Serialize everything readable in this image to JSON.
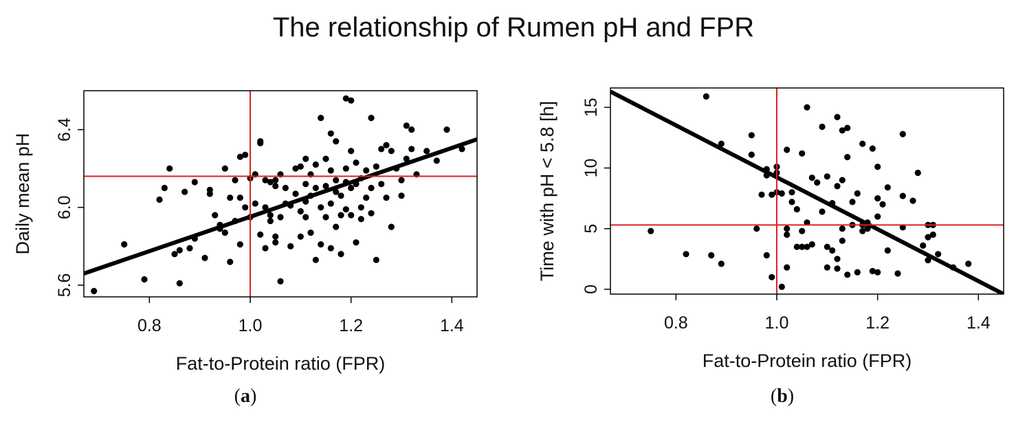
{
  "title": "The relationship of Rumen pH and FPR",
  "chart_data": [
    {
      "type": "scatter",
      "panel": "(a)",
      "panel_letter": "a",
      "xlabel": "Fat-to-Protein ratio (FPR)",
      "ylabel": "Daily mean pH",
      "xlim": [
        0.67,
        1.45
      ],
      "ylim": [
        5.54,
        6.6
      ],
      "xticks": [
        0.8,
        1.0,
        1.2,
        1.4
      ],
      "xtick_labels": [
        "0.8",
        "1.0",
        "1.2",
        "1.4"
      ],
      "yticks": [
        5.6,
        6.0,
        6.4
      ],
      "ytick_labels": [
        "5.6",
        "6.0",
        "6.4"
      ],
      "grid": false,
      "reference_lines": {
        "x": 1.0,
        "y": 6.16
      },
      "regression_line": [
        [
          0.67,
          5.66
        ],
        [
          1.45,
          6.35
        ]
      ],
      "points": [
        [
          0.69,
          5.57
        ],
        [
          0.75,
          5.81
        ],
        [
          0.79,
          5.63
        ],
        [
          0.82,
          6.04
        ],
        [
          0.83,
          6.1
        ],
        [
          0.84,
          6.2
        ],
        [
          0.85,
          5.76
        ],
        [
          0.86,
          5.61
        ],
        [
          0.86,
          5.78
        ],
        [
          0.87,
          6.08
        ],
        [
          0.88,
          5.79
        ],
        [
          0.89,
          5.84
        ],
        [
          0.89,
          6.13
        ],
        [
          0.91,
          5.74
        ],
        [
          0.92,
          6.09
        ],
        [
          0.92,
          6.07
        ],
        [
          0.93,
          5.96
        ],
        [
          0.94,
          5.91
        ],
        [
          0.94,
          5.89
        ],
        [
          0.95,
          6.2
        ],
        [
          0.95,
          5.87
        ],
        [
          0.96,
          5.72
        ],
        [
          0.96,
          6.05
        ],
        [
          0.97,
          6.14
        ],
        [
          0.97,
          5.93
        ],
        [
          0.98,
          6.26
        ],
        [
          0.98,
          6.05
        ],
        [
          0.98,
          5.81
        ],
        [
          0.99,
          6.27
        ],
        [
          0.99,
          6.0
        ],
        [
          1.0,
          6.15
        ],
        [
          1.0,
          5.95
        ],
        [
          1.01,
          6.17
        ],
        [
          1.01,
          6.02
        ],
        [
          1.02,
          6.33
        ],
        [
          1.02,
          5.86
        ],
        [
          1.02,
          6.34
        ],
        [
          1.03,
          6.14
        ],
        [
          1.03,
          6.0
        ],
        [
          1.03,
          5.79
        ],
        [
          1.04,
          6.13
        ],
        [
          1.04,
          5.96
        ],
        [
          1.04,
          5.93
        ],
        [
          1.05,
          6.14
        ],
        [
          1.05,
          6.11
        ],
        [
          1.05,
          5.85
        ],
        [
          1.05,
          5.82
        ],
        [
          1.06,
          5.62
        ],
        [
          1.06,
          6.17
        ],
        [
          1.06,
          5.95
        ],
        [
          1.07,
          6.1
        ],
        [
          1.07,
          6.02
        ],
        [
          1.08,
          6.01
        ],
        [
          1.08,
          5.8
        ],
        [
          1.09,
          6.2
        ],
        [
          1.09,
          6.07
        ],
        [
          1.1,
          6.21
        ],
        [
          1.1,
          5.98
        ],
        [
          1.1,
          5.85
        ],
        [
          1.11,
          6.25
        ],
        [
          1.11,
          6.12
        ],
        [
          1.11,
          6.03
        ],
        [
          1.11,
          5.95
        ],
        [
          1.12,
          6.17
        ],
        [
          1.12,
          6.06
        ],
        [
          1.12,
          5.87
        ],
        [
          1.13,
          6.22
        ],
        [
          1.13,
          6.1
        ],
        [
          1.13,
          5.73
        ],
        [
          1.14,
          6.46
        ],
        [
          1.14,
          6.0
        ],
        [
          1.14,
          5.81
        ],
        [
          1.15,
          6.25
        ],
        [
          1.15,
          6.11
        ],
        [
          1.15,
          5.95
        ],
        [
          1.16,
          6.38
        ],
        [
          1.16,
          6.19
        ],
        [
          1.16,
          6.02
        ],
        [
          1.16,
          5.79
        ],
        [
          1.17,
          6.34
        ],
        [
          1.17,
          6.14
        ],
        [
          1.17,
          6.08
        ],
        [
          1.17,
          5.9
        ],
        [
          1.18,
          6.06
        ],
        [
          1.18,
          5.96
        ],
        [
          1.18,
          5.76
        ],
        [
          1.19,
          6.56
        ],
        [
          1.19,
          6.2
        ],
        [
          1.19,
          6.13
        ],
        [
          1.19,
          5.99
        ],
        [
          1.2,
          6.55
        ],
        [
          1.2,
          6.29
        ],
        [
          1.2,
          6.1
        ],
        [
          1.2,
          5.96
        ],
        [
          1.21,
          6.23
        ],
        [
          1.21,
          6.12
        ],
        [
          1.21,
          5.82
        ],
        [
          1.22,
          6.15
        ],
        [
          1.22,
          6.0
        ],
        [
          1.22,
          5.94
        ],
        [
          1.23,
          6.19
        ],
        [
          1.23,
          6.05
        ],
        [
          1.24,
          6.46
        ],
        [
          1.24,
          6.1
        ],
        [
          1.24,
          5.97
        ],
        [
          1.25,
          6.21
        ],
        [
          1.25,
          5.73
        ],
        [
          1.26,
          6.3
        ],
        [
          1.26,
          6.12
        ],
        [
          1.27,
          6.32
        ],
        [
          1.27,
          6.05
        ],
        [
          1.28,
          6.29
        ],
        [
          1.28,
          5.9
        ],
        [
          1.29,
          6.2
        ],
        [
          1.3,
          6.14
        ],
        [
          1.3,
          6.06
        ],
        [
          1.31,
          6.42
        ],
        [
          1.31,
          6.25
        ],
        [
          1.32,
          6.4
        ],
        [
          1.32,
          6.3
        ],
        [
          1.33,
          6.17
        ],
        [
          1.35,
          6.29
        ],
        [
          1.37,
          6.24
        ],
        [
          1.39,
          6.4
        ],
        [
          1.42,
          6.3
        ]
      ]
    },
    {
      "type": "scatter",
      "panel": "(b)",
      "panel_letter": "b",
      "xlabel": "Fat-to-Protein ratio (FPR)",
      "ylabel": "Time with pH < 5.8 [h]",
      "xlim": [
        0.67,
        1.45
      ],
      "ylim": [
        -0.4,
        16.6
      ],
      "xticks": [
        0.8,
        1.0,
        1.2,
        1.4
      ],
      "xtick_labels": [
        "0.8",
        "1.0",
        "1.2",
        "1.4"
      ],
      "yticks": [
        0,
        5,
        10,
        15
      ],
      "ytick_labels": [
        "0",
        "5",
        "10",
        "15"
      ],
      "grid": false,
      "reference_lines": {
        "x": 1.0,
        "y": 5.3
      },
      "regression_line": [
        [
          0.67,
          16.3
        ],
        [
          1.45,
          -0.4
        ]
      ],
      "points": [
        [
          0.75,
          4.8
        ],
        [
          0.82,
          2.9
        ],
        [
          0.86,
          15.9
        ],
        [
          0.87,
          2.8
        ],
        [
          0.89,
          2.1
        ],
        [
          0.89,
          12.0
        ],
        [
          0.95,
          12.7
        ],
        [
          0.95,
          11.1
        ],
        [
          0.96,
          5.0
        ],
        [
          0.97,
          7.8
        ],
        [
          0.98,
          9.4
        ],
        [
          0.98,
          9.9
        ],
        [
          0.98,
          2.8
        ],
        [
          0.99,
          7.8
        ],
        [
          0.99,
          1.0
        ],
        [
          1.0,
          8.0
        ],
        [
          1.0,
          9.6
        ],
        [
          1.0,
          10.1
        ],
        [
          1.01,
          0.2
        ],
        [
          1.01,
          7.9
        ],
        [
          1.02,
          11.5
        ],
        [
          1.02,
          5.0
        ],
        [
          1.02,
          4.5
        ],
        [
          1.02,
          1.8
        ],
        [
          1.03,
          7.2
        ],
        [
          1.03,
          8.0
        ],
        [
          1.04,
          6.6
        ],
        [
          1.04,
          3.5
        ],
        [
          1.05,
          3.5
        ],
        [
          1.05,
          4.8
        ],
        [
          1.05,
          11.2
        ],
        [
          1.06,
          15.0
        ],
        [
          1.06,
          5.5
        ],
        [
          1.06,
          3.5
        ],
        [
          1.07,
          9.2
        ],
        [
          1.07,
          3.7
        ],
        [
          1.08,
          8.8
        ],
        [
          1.09,
          13.4
        ],
        [
          1.09,
          6.4
        ],
        [
          1.1,
          3.5
        ],
        [
          1.1,
          9.3
        ],
        [
          1.1,
          1.8
        ],
        [
          1.11,
          7.1
        ],
        [
          1.11,
          3.2
        ],
        [
          1.12,
          14.2
        ],
        [
          1.12,
          8.5
        ],
        [
          1.12,
          2.5
        ],
        [
          1.12,
          1.7
        ],
        [
          1.13,
          13.1
        ],
        [
          1.13,
          9.0
        ],
        [
          1.13,
          5.0
        ],
        [
          1.13,
          4.0
        ],
        [
          1.14,
          13.3
        ],
        [
          1.14,
          10.9
        ],
        [
          1.14,
          1.2
        ],
        [
          1.15,
          7.2
        ],
        [
          1.15,
          5.3
        ],
        [
          1.16,
          7.9
        ],
        [
          1.16,
          1.4
        ],
        [
          1.17,
          12.0
        ],
        [
          1.17,
          5.3
        ],
        [
          1.17,
          4.8
        ],
        [
          1.18,
          5.5
        ],
        [
          1.18,
          5.0
        ],
        [
          1.19,
          11.6
        ],
        [
          1.19,
          1.5
        ],
        [
          1.2,
          10.1
        ],
        [
          1.2,
          7.5
        ],
        [
          1.2,
          6.0
        ],
        [
          1.2,
          1.4
        ],
        [
          1.21,
          7.0
        ],
        [
          1.22,
          8.4
        ],
        [
          1.22,
          3.2
        ],
        [
          1.24,
          1.3
        ],
        [
          1.25,
          12.8
        ],
        [
          1.25,
          7.7
        ],
        [
          1.25,
          5.1
        ],
        [
          1.27,
          7.3
        ],
        [
          1.28,
          9.6
        ],
        [
          1.29,
          3.6
        ],
        [
          1.3,
          5.3
        ],
        [
          1.3,
          4.3
        ],
        [
          1.3,
          2.4
        ],
        [
          1.31,
          5.3
        ],
        [
          1.31,
          4.5
        ],
        [
          1.32,
          2.9
        ],
        [
          1.35,
          1.8
        ],
        [
          1.38,
          2.1
        ]
      ]
    }
  ],
  "colors": {
    "points": "#000000",
    "regression": "#000000",
    "reference": "#dd2222",
    "frame": "#000000"
  }
}
